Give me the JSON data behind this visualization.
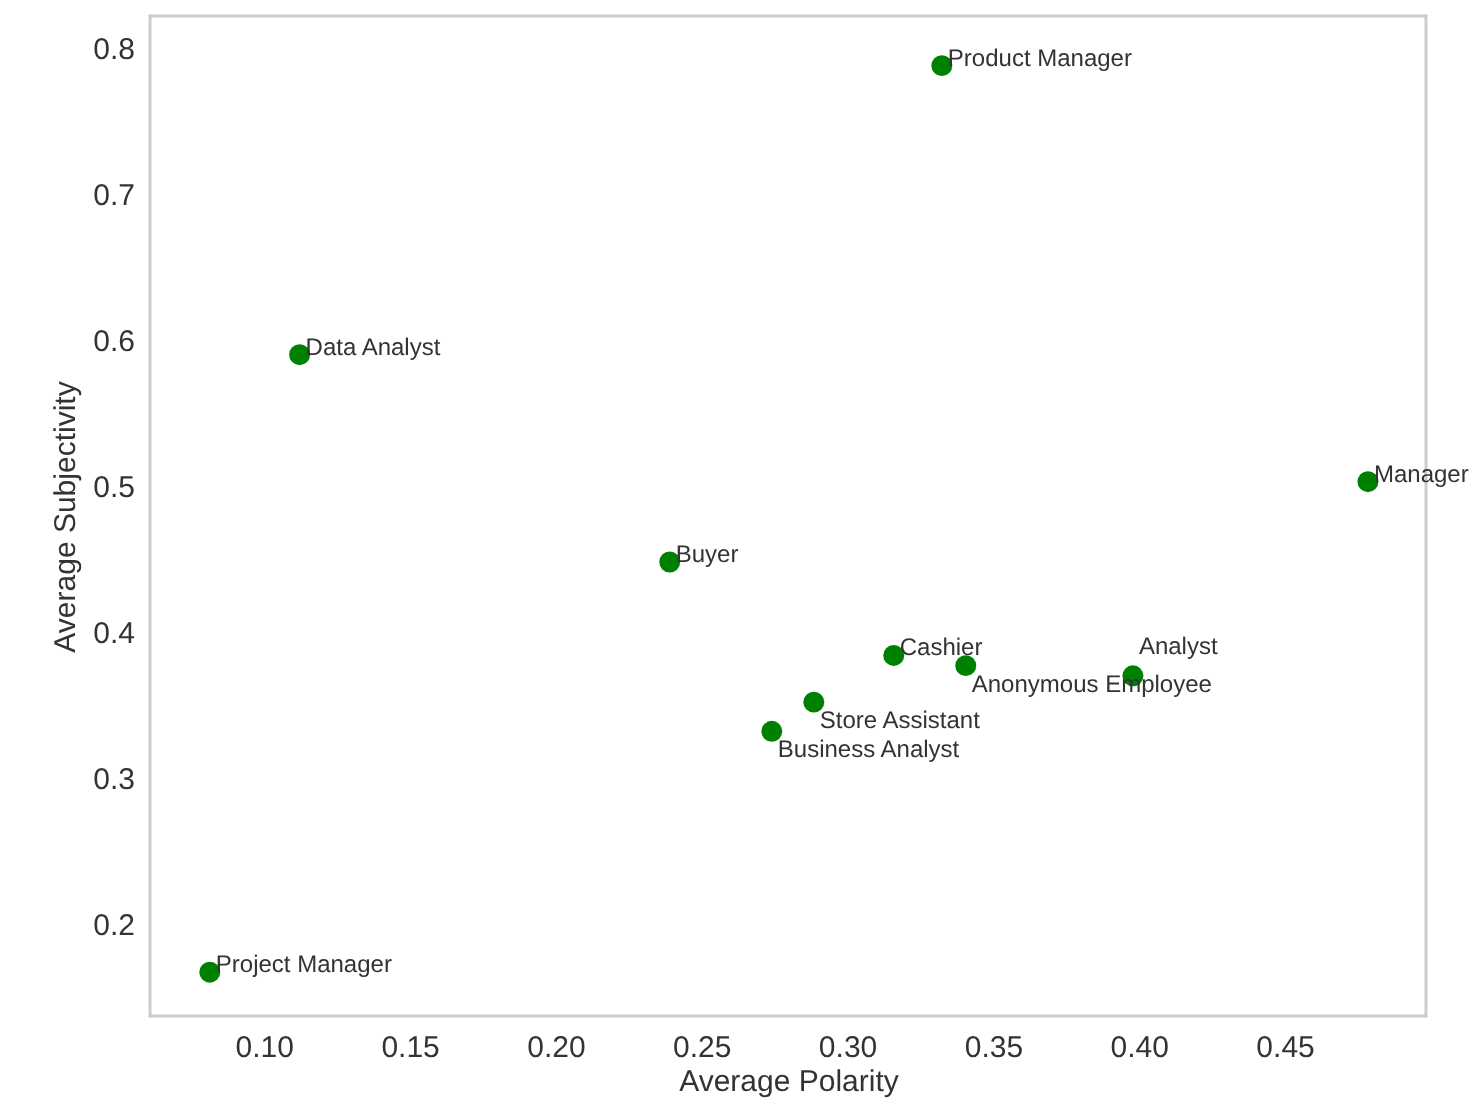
{
  "chart_data": {
    "type": "scatter",
    "xlabel": "Average Polarity",
    "ylabel": "Average Subjectivity",
    "x": [
      0.3325,
      0.1123,
      0.4786,
      0.2392,
      0.316,
      0.3407,
      0.398,
      0.2886,
      0.2742,
      0.0815
    ],
    "series": [
      {
        "color": "#008000",
        "values": [
          0.788,
          0.59,
          0.503,
          0.448,
          0.384,
          0.377,
          0.37,
          0.352,
          0.332,
          0.167
        ]
      }
    ],
    "annotations": [
      {
        "text": "Product Manager",
        "x": 0.3325,
        "y": 0.788
      },
      {
        "text": "Data Analyst",
        "x": 0.1123,
        "y": 0.59
      },
      {
        "text": "Manager",
        "x": 0.4786,
        "y": 0.503
      },
      {
        "text": "Buyer",
        "x": 0.2392,
        "y": 0.448
      },
      {
        "text": "Cashier",
        "x": 0.316,
        "y": 0.384
      },
      {
        "text": "Anonymous Employee",
        "x": 0.3407,
        "y": 0.377
      },
      {
        "text": "Analyst",
        "x": 0.398,
        "y": 0.37
      },
      {
        "text": "Store Assistant",
        "x": 0.2886,
        "y": 0.352
      },
      {
        "text": "Business Analyst",
        "x": 0.2742,
        "y": 0.332
      },
      {
        "text": "Project Manager",
        "x": 0.0815,
        "y": 0.167
      }
    ],
    "xlim": [
      0.061,
      0.4985
    ],
    "ylim": [
      0.137,
      0.822
    ],
    "xticks": [
      {
        "value": 0.1,
        "label": "0.10"
      },
      0.15,
      {
        "value": 0.2,
        "label": "0.20"
      },
      0.25,
      {
        "value": 0.3,
        "label": "0.30"
      },
      0.35,
      {
        "value": 0.4,
        "label": "0.40"
      },
      0.45
    ],
    "yticks": [
      0.2,
      0.3,
      0.4,
      0.5,
      0.6,
      0.7,
      0.8
    ],
    "grid": false,
    "marker": "circle"
  }
}
